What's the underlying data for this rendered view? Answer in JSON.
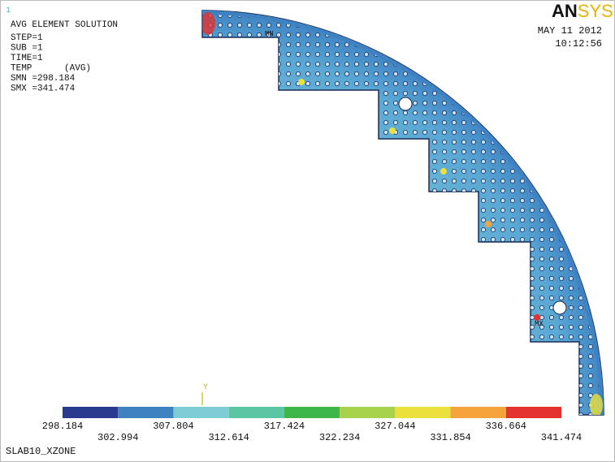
{
  "window_number": "1",
  "info": [
    "AVG ELEMENT SOLUTION",
    "STEP=1",
    "SUB =1",
    "TIME=1",
    "TEMP      (AVG)",
    "SMN =298.184",
    "SMX =341.474"
  ],
  "logo": {
    "bold": "AN",
    "light": "SYS"
  },
  "date": "MAY 11 2012",
  "time": "10:12:56",
  "min_marker": "MN",
  "max_marker": "MX",
  "axis_label": "Y",
  "legend": {
    "labels": [
      "298.184",
      "302.994",
      "307.804",
      "312.614",
      "317.424",
      "322.234",
      "327.044",
      "331.854",
      "336.664",
      "341.474"
    ],
    "colors": [
      "#2a3b8f",
      "#3e82c2",
      "#7fcbd6",
      "#5cc5a4",
      "#3fb64a",
      "#a6d24c",
      "#ece13c",
      "#f4a43a",
      "#e4322e"
    ]
  },
  "footer": "SLAB10_XZONE"
}
